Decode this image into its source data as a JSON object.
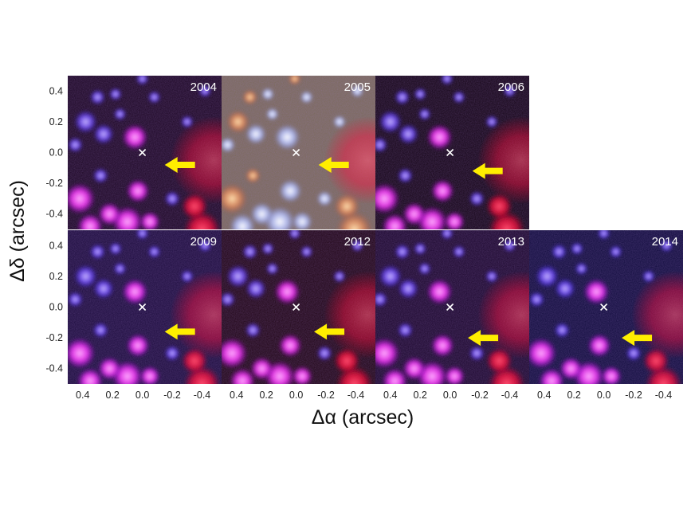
{
  "figure": {
    "x_axis_title": "Δα (arcsec)",
    "y_axis_title": "Δδ (arcsec)",
    "x_tick_labels": [
      "0.4",
      "0.2",
      "0.0",
      "-0.2",
      "-0.4"
    ],
    "y_tick_labels": [
      "0.4",
      "0.2",
      "0.0",
      "-0.2",
      "-0.4"
    ],
    "colors": {
      "arrow": "#ffee00",
      "marker": "#ffffff",
      "background": "#ffffff"
    },
    "panels": [
      {
        "year": "2004",
        "cross": [
          0.0,
          0.0
        ],
        "arrow_tip": [
          -0.15,
          -0.08
        ]
      },
      {
        "year": "2005",
        "cross": [
          0.0,
          0.0
        ],
        "arrow_tip": [
          -0.15,
          -0.08
        ]
      },
      {
        "year": "2006",
        "cross": [
          0.0,
          0.0
        ],
        "arrow_tip": [
          -0.15,
          -0.12
        ]
      },
      {
        "year": "2009",
        "cross": [
          0.0,
          0.0
        ],
        "arrow_tip": [
          -0.15,
          -0.16
        ]
      },
      {
        "year": "2012",
        "cross": [
          0.0,
          0.0
        ],
        "arrow_tip": [
          -0.12,
          -0.16
        ]
      },
      {
        "year": "2013",
        "cross": [
          0.0,
          0.0
        ],
        "arrow_tip": [
          -0.12,
          -0.2
        ]
      },
      {
        "year": "2014",
        "cross": [
          0.0,
          0.0
        ],
        "arrow_tip": [
          -0.12,
          -0.2
        ]
      }
    ]
  }
}
